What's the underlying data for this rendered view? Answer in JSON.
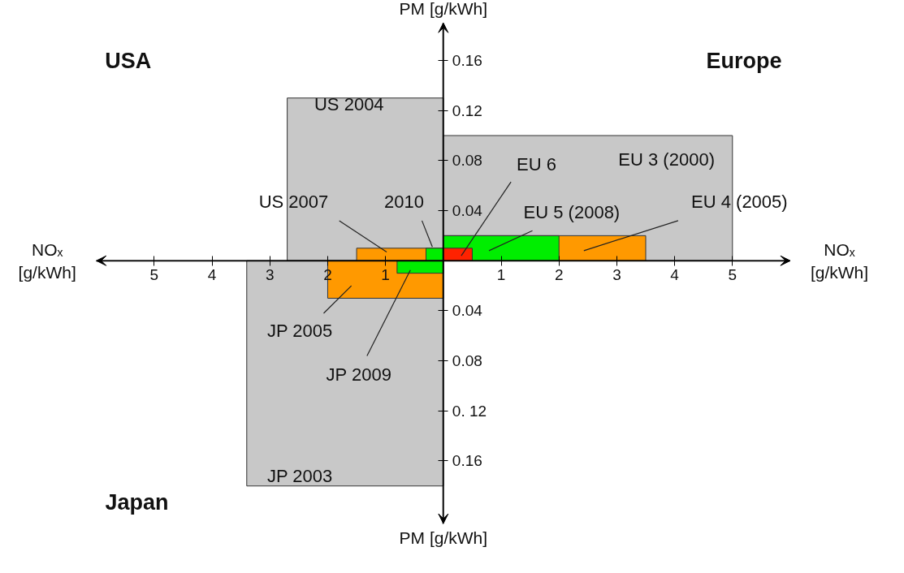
{
  "chart_data": {
    "type": "area",
    "xlabel": "NOₓ [g/kWh]",
    "ylabel": "PM [g/kWh]",
    "xlim": [
      -6,
      6
    ],
    "ylim": [
      -0.21,
      0.19
    ],
    "xticks": [
      {
        "value": -5,
        "label": "5"
      },
      {
        "value": -4,
        "label": "4"
      },
      {
        "value": -3,
        "label": "3"
      },
      {
        "value": -2,
        "label": "2"
      },
      {
        "value": -1,
        "label": "1"
      },
      1,
      2,
      3,
      4,
      5
    ],
    "yticks": [
      {
        "value": -0.16,
        "label": "0.16"
      },
      {
        "value": -0.12,
        "label": "0. 12"
      },
      {
        "value": -0.08,
        "label": "0.08"
      },
      {
        "value": -0.04,
        "label": "0.04"
      },
      0.04,
      0.08,
      0.12,
      0.16
    ],
    "annotations": [
      "USA",
      "Europe",
      "Japan",
      "PM [g/kWh]"
    ],
    "series": [
      {
        "name": "US 2004",
        "color": "#c8c8c8",
        "x": [
          0,
          -2.7
        ],
        "values": [
          0.13,
          0.13
        ]
      },
      {
        "name": "EU 3 (2000)",
        "color": "#c8c8c8",
        "x": [
          0,
          5.0
        ],
        "values": [
          0.1,
          0.1
        ]
      },
      {
        "name": "JP 2003",
        "color": "#c8c8c8",
        "x": [
          0,
          -3.4
        ],
        "values": [
          -0.18,
          -0.18
        ]
      },
      {
        "name": "US 2007",
        "color": "#ff9900",
        "x": [
          0,
          -1.5
        ],
        "values": [
          0.01,
          0.01
        ]
      },
      {
        "name": "EU 4 (2005)",
        "color": "#ff9900",
        "x": [
          0,
          3.5
        ],
        "values": [
          0.02,
          0.02
        ]
      },
      {
        "name": "JP 2005",
        "color": "#ff9900",
        "x": [
          0,
          -2.0
        ],
        "values": [
          -0.03,
          -0.03
        ]
      },
      {
        "name": "2010",
        "color": "#00ee00",
        "x": [
          0,
          -0.3
        ],
        "values": [
          0.01,
          0.01
        ]
      },
      {
        "name": "EU 5 (2008)",
        "color": "#00ee00",
        "x": [
          0,
          2.0
        ],
        "values": [
          0.02,
          0.02
        ]
      },
      {
        "name": "JP 2009",
        "color": "#00ee00",
        "x": [
          0,
          -0.8
        ],
        "values": [
          -0.01,
          -0.01
        ]
      },
      {
        "name": "EU 6",
        "color": "#ff2200",
        "x": [
          0,
          0.5
        ],
        "values": [
          0.01,
          0.01
        ]
      }
    ]
  }
}
